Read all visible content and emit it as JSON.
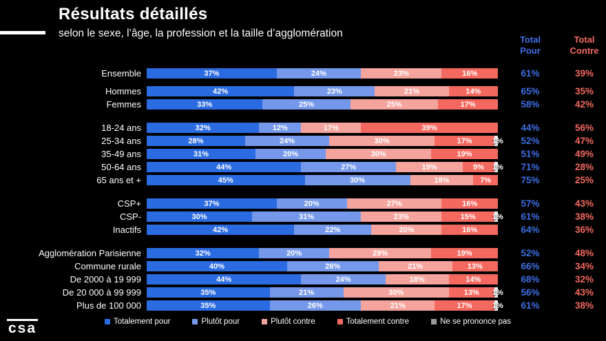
{
  "header": {
    "title": "Résultats détaillés",
    "subtitle": "selon le sexe, l’âge, la profession et la taille d’agglomération"
  },
  "totals_header": {
    "pour_line1": "Total",
    "pour_line2": "Pour",
    "contre_line1": "Total",
    "contre_line2": "Contre"
  },
  "logo_text": "csa",
  "colors": {
    "background": "#000000",
    "text": "#FFFFFF",
    "total_pour": "#3E6EE3",
    "total_contre": "#F4695F"
  },
  "chart_data": {
    "type": "bar",
    "stacked": true,
    "orientation": "horizontal",
    "unit": "%",
    "xlim": [
      0,
      100
    ],
    "grid": false,
    "legend_position": "bottom",
    "series": [
      {
        "name": "Totalement pour",
        "color": "#2B6BE1",
        "legend_color": "#2B6BE1"
      },
      {
        "name": "Plutôt pour",
        "color": "#7598EA",
        "legend_color": "#7598EA"
      },
      {
        "name": "Plutôt contre",
        "color": "#F5A49D",
        "legend_color": "#F5A49D"
      },
      {
        "name": "Totalement contre",
        "color": "#F4695F",
        "legend_color": "#F4695F"
      },
      {
        "name": "Ne se prononce pas",
        "color": "#F2F2F2",
        "legend_color": "#9B9B9B"
      }
    ],
    "groups": [
      {
        "rows": [
          {
            "label": "Ensemble",
            "values": [
              37,
              24,
              23,
              16,
              0
            ],
            "total_pour": "61%",
            "total_contre": "39%"
          }
        ]
      },
      {
        "rows": [
          {
            "label": "Hommes",
            "values": [
              42,
              23,
              21,
              14,
              0
            ],
            "total_pour": "65%",
            "total_contre": "35%"
          },
          {
            "label": "Femmes",
            "values": [
              33,
              25,
              25,
              17,
              0
            ],
            "total_pour": "58%",
            "total_contre": "42%"
          }
        ]
      },
      {
        "rows": [
          {
            "label": "18-24 ans",
            "values": [
              32,
              12,
              17,
              39,
              0
            ],
            "total_pour": "44%",
            "total_contre": "56%"
          },
          {
            "label": "25-34 ans",
            "values": [
              28,
              24,
              30,
              17,
              1
            ],
            "total_pour": "52%",
            "total_contre": "47%"
          },
          {
            "label": "35-49 ans",
            "values": [
              31,
              20,
              30,
              19,
              0
            ],
            "total_pour": "51%",
            "total_contre": "49%"
          },
          {
            "label": "50-64 ans",
            "values": [
              44,
              27,
              19,
              9,
              1
            ],
            "total_pour": "71%",
            "total_contre": "28%"
          },
          {
            "label": "65 ans et +",
            "values": [
              45,
              30,
              18,
              7,
              0
            ],
            "total_pour": "75%",
            "total_contre": "25%"
          }
        ]
      },
      {
        "rows": [
          {
            "label": "CSP+",
            "values": [
              37,
              20,
              27,
              16,
              0
            ],
            "total_pour": "57%",
            "total_contre": "43%"
          },
          {
            "label": "CSP-",
            "values": [
              30,
              31,
              23,
              15,
              1
            ],
            "total_pour": "61%",
            "total_contre": "38%"
          },
          {
            "label": "Inactifs",
            "values": [
              42,
              22,
              20,
              16,
              0
            ],
            "total_pour": "64%",
            "total_contre": "36%"
          }
        ]
      },
      {
        "rows": [
          {
            "label": "Agglomération Parisienne",
            "values": [
              32,
              20,
              29,
              19,
              0
            ],
            "total_pour": "52%",
            "total_contre": "48%"
          },
          {
            "label": "Commune rurale",
            "values": [
              40,
              26,
              21,
              13,
              0
            ],
            "total_pour": "66%",
            "total_contre": "34%"
          },
          {
            "label": "De 2000 à 19 999",
            "values": [
              44,
              24,
              18,
              14,
              0
            ],
            "total_pour": "68%",
            "total_contre": "32%"
          },
          {
            "label": "De 20 000 à 99 999",
            "values": [
              35,
              21,
              30,
              13,
              1
            ],
            "total_pour": "56%",
            "total_contre": "43%"
          },
          {
            "label": "Plus de 100 000",
            "values": [
              35,
              26,
              21,
              17,
              1
            ],
            "total_pour": "61%",
            "total_contre": "38%"
          }
        ]
      }
    ]
  }
}
